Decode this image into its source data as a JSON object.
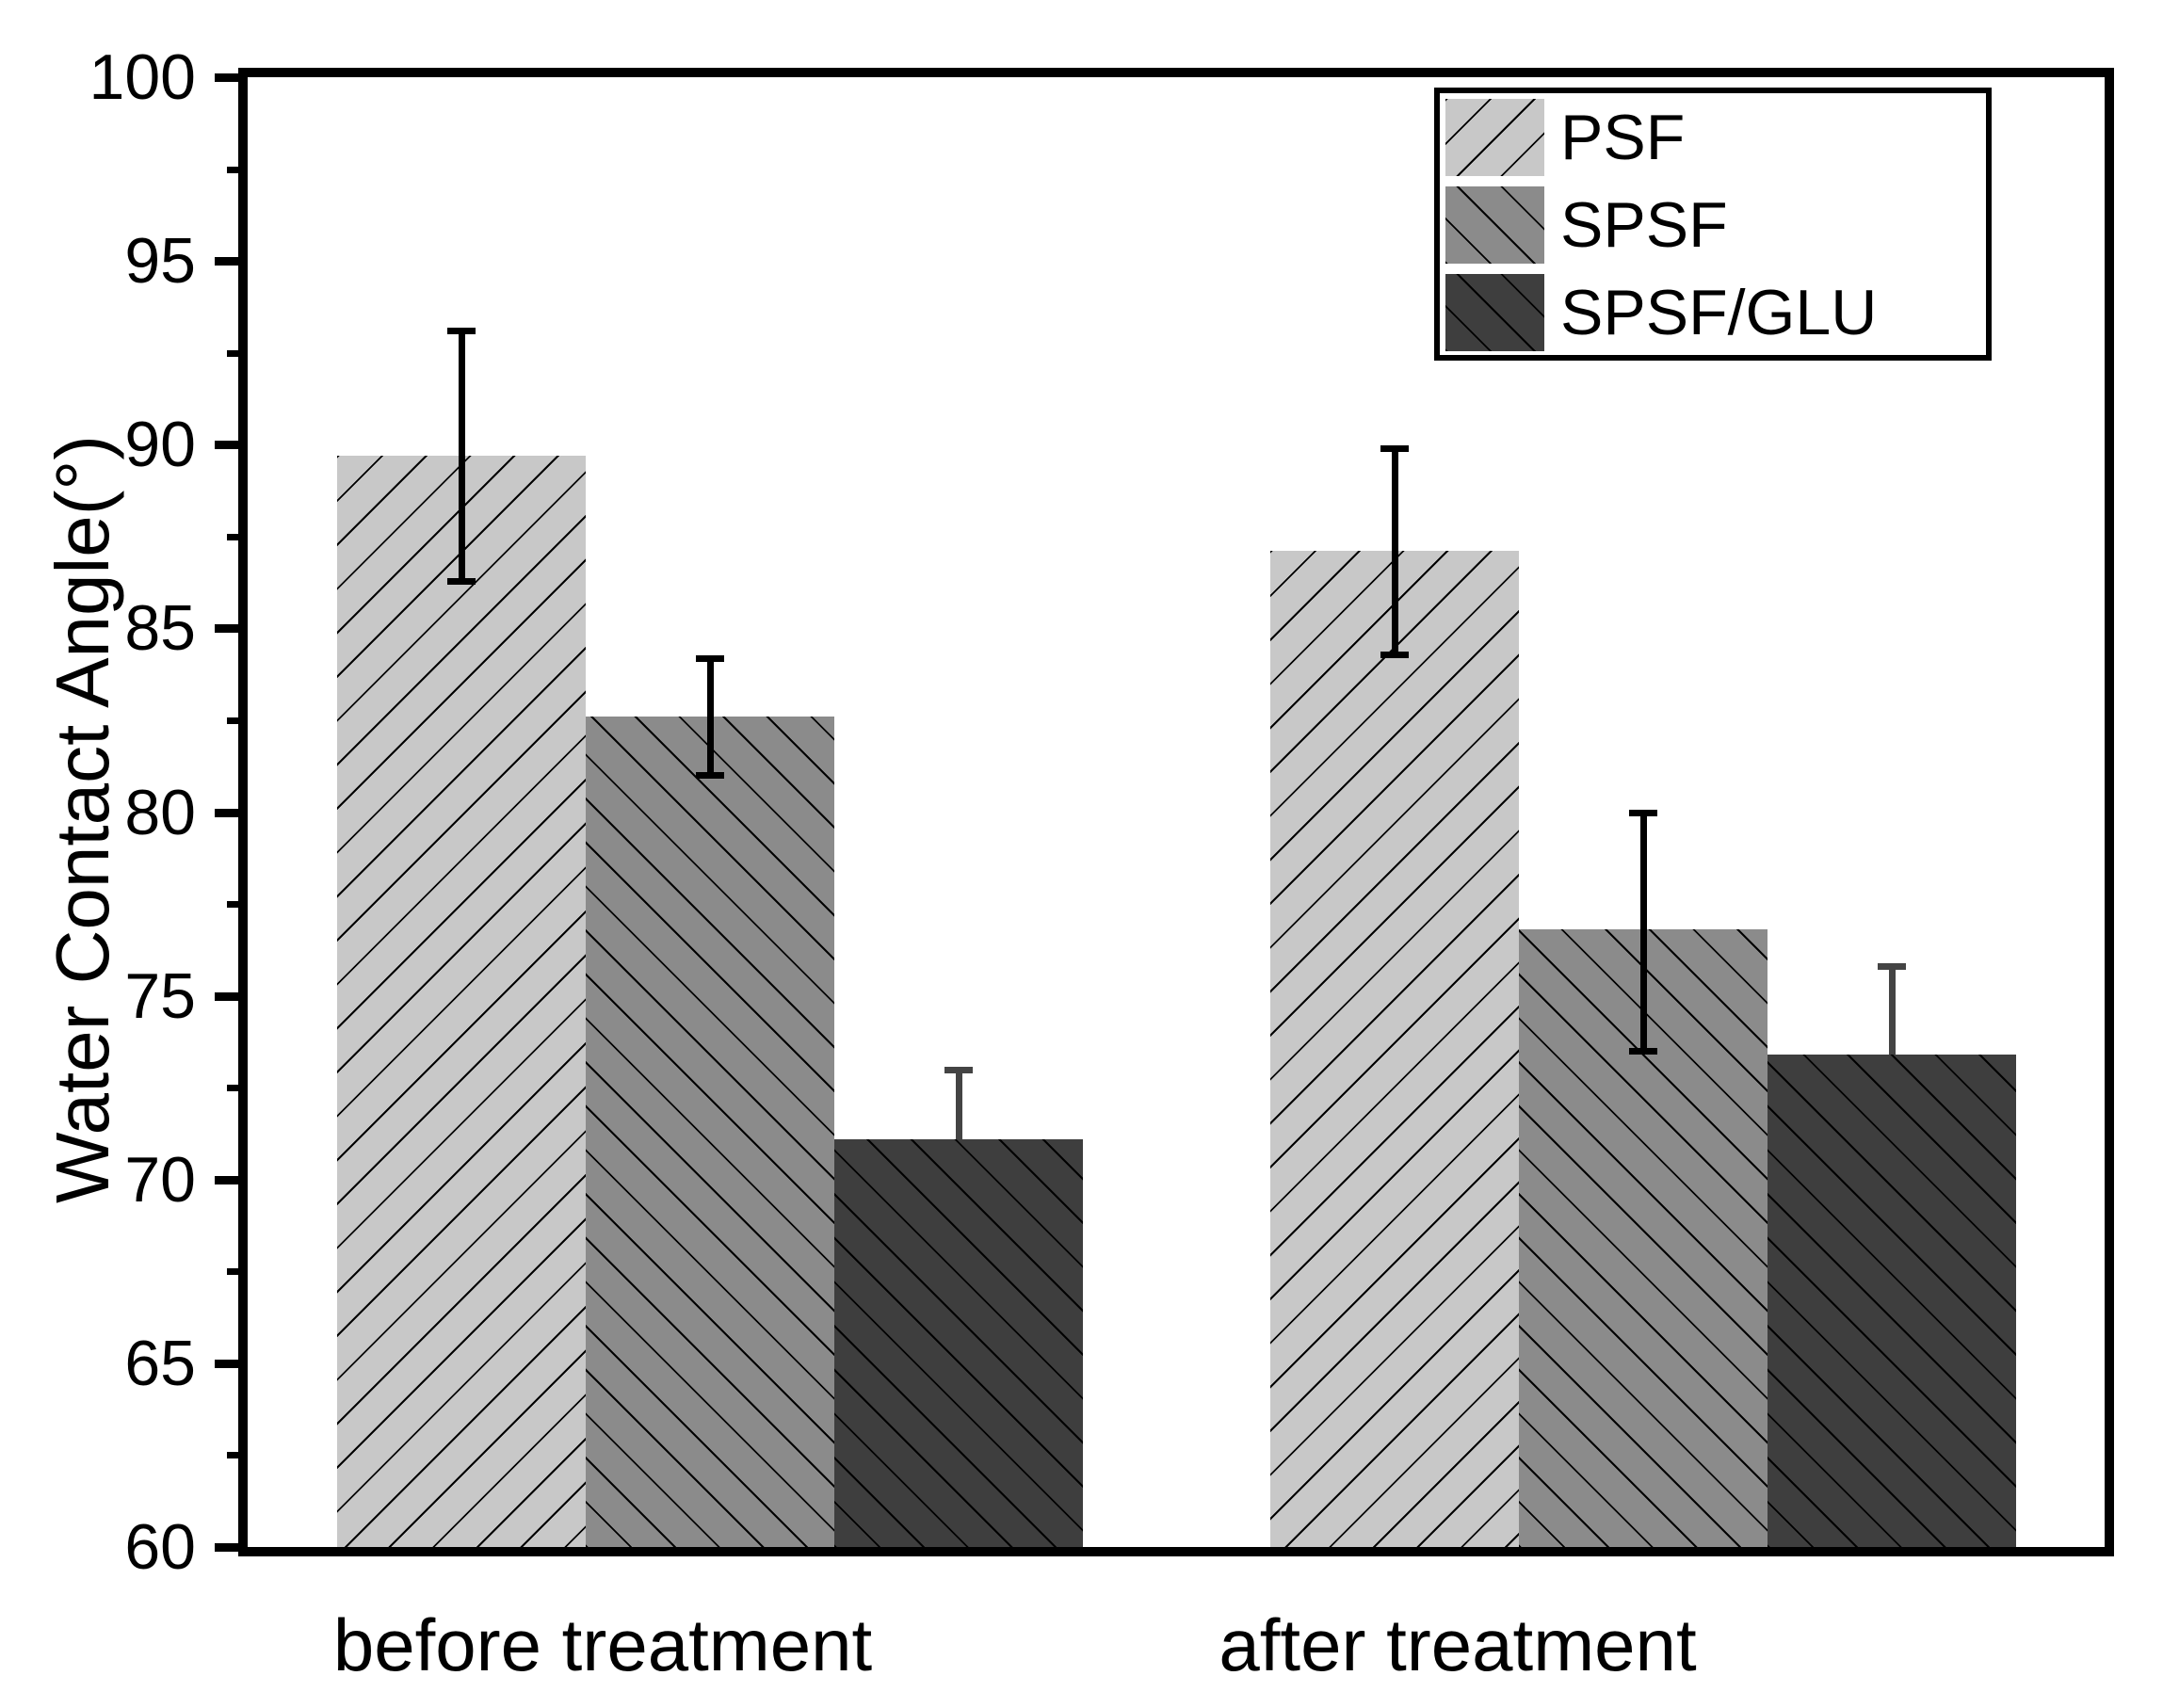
{
  "chart_data": {
    "type": "bar",
    "title": "",
    "xlabel": "",
    "ylabel": "Water Contact Angle(°)",
    "ylim": [
      60,
      100
    ],
    "y_major_ticks": [
      60,
      65,
      70,
      75,
      80,
      85,
      90,
      95,
      100
    ],
    "y_tick_labels": [
      "60",
      "65",
      "70",
      "75",
      "80",
      "85",
      "90",
      "95",
      "100"
    ],
    "y_minor_step": 2.5,
    "grid": false,
    "legend_position": "top-right",
    "categories": [
      "before treatment",
      "after treatment"
    ],
    "series": [
      {
        "name": "PSF",
        "fill": "#c8c8c8",
        "hatch": "/",
        "hatch_color": "#000000",
        "errbar_color": "#000000",
        "values": [
          89.7,
          87.1
        ],
        "err_upper": [
          93.1,
          89.9
        ],
        "err_lower": [
          86.3,
          84.3
        ]
      },
      {
        "name": "SPSF",
        "fill": "#8b8b8b",
        "hatch": "\\",
        "hatch_color": "#000000",
        "errbar_color": "#000000",
        "values": [
          82.6,
          76.8
        ],
        "err_upper": [
          84.2,
          80.0
        ],
        "err_lower": [
          81.0,
          73.5
        ]
      },
      {
        "name": "SPSF/GLU",
        "fill": "#3e3e3e",
        "hatch": "\\",
        "hatch_color": "#000000",
        "errbar_color": "#444444",
        "values": [
          71.1,
          73.4
        ],
        "err_upper": [
          73.0,
          75.8
        ],
        "err_lower": [
          null,
          null
        ]
      }
    ]
  }
}
